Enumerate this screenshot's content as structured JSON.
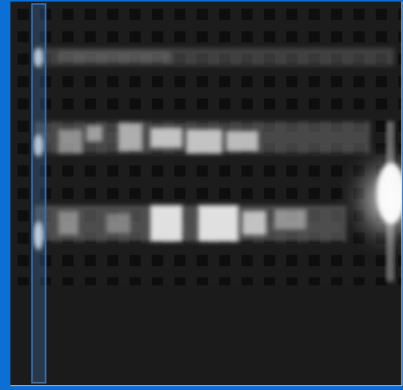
{
  "viewer": {
    "accent_color": "#0b6fd4",
    "background_color": "#1a1a1a",
    "selection_color": "#3a6fb3",
    "image_description_label": ""
  },
  "bands": [
    {
      "name": "band-top",
      "brightness": 0.25
    },
    {
      "name": "band-middle",
      "brightness": 0.75
    },
    {
      "name": "band-bottom",
      "brightness": 0.85
    }
  ],
  "selection_region": {
    "name": "column-selection"
  }
}
